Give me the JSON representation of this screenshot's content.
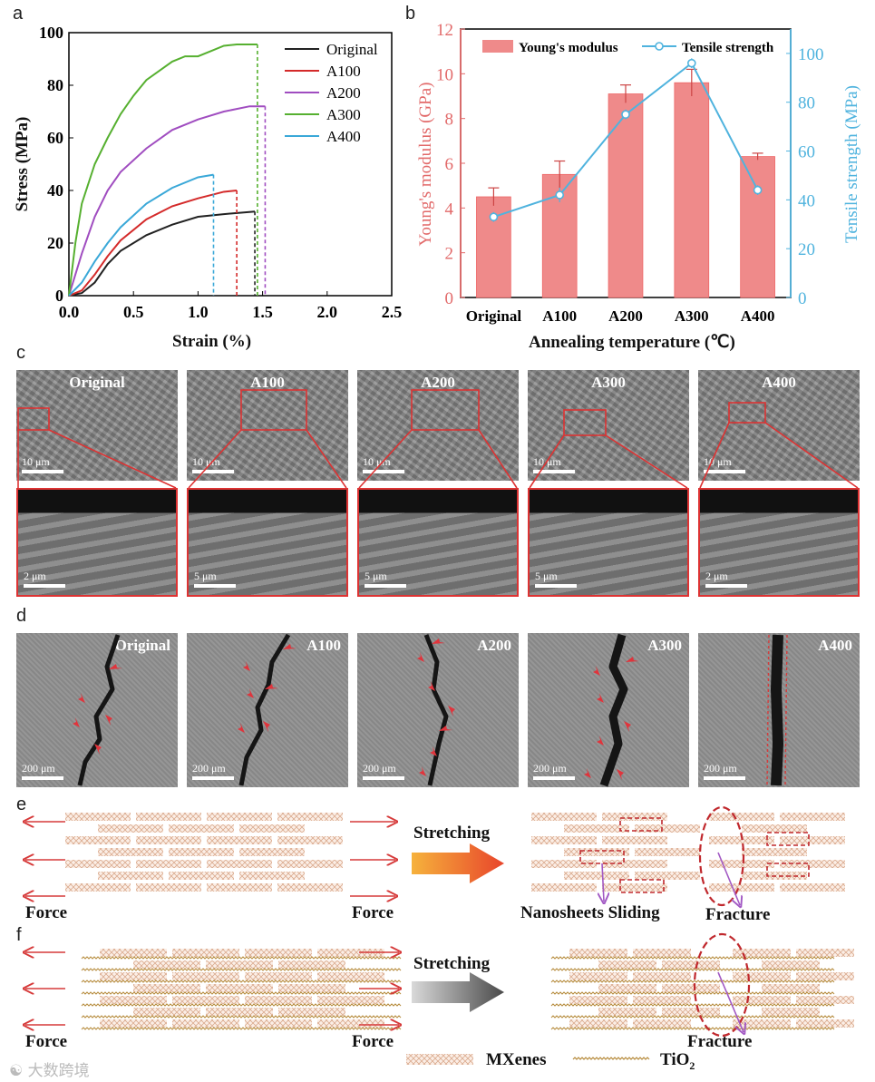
{
  "panels": {
    "a": "a",
    "b": "b",
    "c": "c",
    "d": "d",
    "e": "e",
    "f": "f"
  },
  "chart_data": [
    {
      "type": "line",
      "panel": "a",
      "xlabel": "Strain (%)",
      "ylabel": "Stress (MPa)",
      "xlim": [
        0.0,
        2.5
      ],
      "ylim": [
        0,
        100
      ],
      "xticks": [
        "0.0",
        "0.5",
        "1.0",
        "1.5",
        "2.0",
        "2.5"
      ],
      "yticks": [
        "0",
        "20",
        "40",
        "60",
        "80",
        "100"
      ],
      "legend_position": "top-right",
      "series": [
        {
          "name": "Original",
          "color": "#222222",
          "break_strain": 1.44,
          "x": [
            0,
            0.1,
            0.2,
            0.3,
            0.4,
            0.6,
            0.8,
            1.0,
            1.2,
            1.44
          ],
          "y": [
            0,
            1,
            5,
            12,
            17,
            23,
            27,
            30,
            31,
            32
          ]
        },
        {
          "name": "A100",
          "color": "#d42a2a",
          "break_strain": 1.3,
          "x": [
            0,
            0.1,
            0.2,
            0.3,
            0.4,
            0.6,
            0.8,
            1.0,
            1.2,
            1.3
          ],
          "y": [
            0,
            2,
            8,
            15,
            21,
            29,
            34,
            37,
            39.5,
            40
          ]
        },
        {
          "name": "A200",
          "color": "#a04dc0",
          "break_strain": 1.52,
          "x": [
            0,
            0.1,
            0.2,
            0.3,
            0.4,
            0.6,
            0.8,
            1.0,
            1.2,
            1.4,
            1.52
          ],
          "y": [
            0,
            16,
            30,
            40,
            47,
            56,
            63,
            67,
            70,
            72,
            72
          ]
        },
        {
          "name": "A300",
          "color": "#56b030",
          "break_strain": 1.46,
          "x": [
            0,
            0.05,
            0.1,
            0.2,
            0.3,
            0.4,
            0.5,
            0.6,
            0.8,
            0.9,
            1.0,
            1.1,
            1.2,
            1.3,
            1.46
          ],
          "y": [
            0,
            20,
            35,
            50,
            60,
            69,
            76,
            82,
            89,
            91,
            91,
            93,
            95,
            95.5,
            95.5
          ]
        },
        {
          "name": "A400",
          "color": "#3aa8d8",
          "break_strain": 1.12,
          "x": [
            0,
            0.1,
            0.2,
            0.3,
            0.4,
            0.6,
            0.8,
            1.0,
            1.12
          ],
          "y": [
            0,
            5,
            13,
            20,
            26,
            35,
            41,
            45,
            46
          ]
        }
      ]
    },
    {
      "type": "bar",
      "panel": "b",
      "xlabel": "Annealing temperature (℃)",
      "ylabel": "Young's modulus (GPa)",
      "y2label": "Tensile strength (MPa)",
      "categories": [
        "Original",
        "A100",
        "A200",
        "A300",
        "A400"
      ],
      "ylim": [
        0,
        12
      ],
      "y2lim": [
        0,
        110
      ],
      "yticks": [
        "0",
        "2",
        "4",
        "6",
        "8",
        "10",
        "12"
      ],
      "y2ticks": [
        "0",
        "20",
        "40",
        "60",
        "80",
        "100"
      ],
      "legend_position": "top",
      "series": [
        {
          "name": "Young's modulus",
          "kind": "bar",
          "axis": "left",
          "color": "#ef8a8a",
          "values": [
            4.5,
            5.5,
            9.1,
            9.6,
            6.3
          ],
          "errors": [
            0.4,
            0.6,
            0.4,
            0.6,
            0.15
          ]
        },
        {
          "name": "Tensile strength",
          "kind": "line",
          "axis": "right",
          "color": "#4fb3de",
          "values": [
            33,
            42,
            75,
            96,
            44
          ],
          "errors": [
            2,
            3,
            2,
            2,
            2
          ]
        }
      ]
    }
  ],
  "panel_c": {
    "samples": [
      {
        "title": "Original",
        "scale_top": "10 μm",
        "scale_bottom": "2 μm"
      },
      {
        "title": "A100",
        "scale_top": "10 μm",
        "scale_bottom": "5 μm"
      },
      {
        "title": "A200",
        "scale_top": "10 μm",
        "scale_bottom": "5 μm"
      },
      {
        "title": "A300",
        "scale_top": "10 μm",
        "scale_bottom": "5 μm"
      },
      {
        "title": "A400",
        "scale_top": "10 μm",
        "scale_bottom": "2 μm"
      }
    ]
  },
  "panel_d": {
    "samples": [
      {
        "title": "Original",
        "scale": "200 μm"
      },
      {
        "title": "A100",
        "scale": "200 μm"
      },
      {
        "title": "A200",
        "scale": "200 μm"
      },
      {
        "title": "A300",
        "scale": "200 μm"
      },
      {
        "title": "A400",
        "scale": "200 μm"
      }
    ]
  },
  "panel_e": {
    "force_left": "Force",
    "force_right": "Force",
    "stretching": "Stretching",
    "sliding": "Nanosheets Sliding",
    "fracture": "Fracture"
  },
  "panel_f": {
    "force_left": "Force",
    "force_right": "Force",
    "stretching": "Stretching",
    "fracture": "Fracture",
    "legend_mxenes": "MXenes",
    "legend_tio2": "TiO",
    "legend_tio2_sub": "2"
  },
  "watermark": "大数跨境",
  "colors": {
    "red_arrow": "#d63a3a",
    "orange_arrow": "#e8552b",
    "gray_arrow": "#555555",
    "fracture": "#c0282d",
    "sliding_arrow": "#a259c4"
  }
}
